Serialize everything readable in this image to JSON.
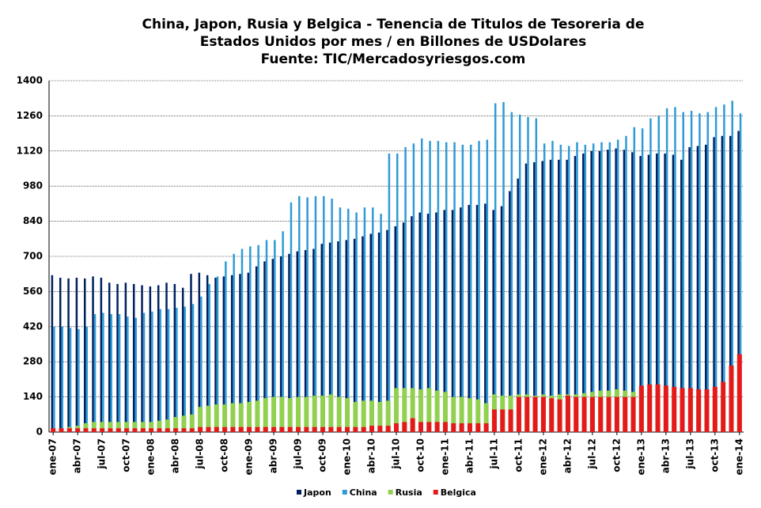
{
  "chart_data": {
    "type": "bar",
    "title": [
      "China, Japon, Rusia y Belgica - Tenencia de Titulos de Tesoreria de",
      "Estados Unidos por mes /  en Billones de USDolares",
      "Fuente: TIC/Mercadosyriesgos.com"
    ],
    "categories": [
      "ene-07",
      null,
      null,
      "abr-07",
      null,
      null,
      "jul-07",
      null,
      null,
      "oct-07",
      null,
      null,
      "ene-08",
      null,
      null,
      "abr-08",
      null,
      null,
      "jul-08",
      null,
      null,
      "oct-08",
      null,
      null,
      "ene-09",
      null,
      null,
      "abr-09",
      null,
      null,
      "jul-09",
      null,
      null,
      "oct-09",
      null,
      null,
      "ene-10",
      null,
      null,
      "abr-10",
      null,
      null,
      "jul-10",
      null,
      null,
      "oct-10",
      null,
      null,
      "ene-11",
      null,
      null,
      "abr-11",
      null,
      null,
      "jul-11",
      null,
      null,
      "oct-11",
      null,
      null,
      "ene-12",
      null,
      null,
      "abr-12",
      null,
      null,
      "jul-12",
      null,
      null,
      "oct-12",
      null,
      null,
      "ene-13",
      null,
      null,
      "abr-13",
      null,
      null,
      "jul-13",
      null,
      null,
      "oct-13",
      null,
      null,
      "ene-14"
    ],
    "series": [
      {
        "name": "Japon",
        "color": "#002060",
        "values": [
          625,
          615,
          612,
          615,
          612,
          620,
          615,
          595,
          590,
          595,
          590,
          585,
          580,
          585,
          595,
          590,
          575,
          630,
          635,
          625,
          615,
          620,
          625,
          630,
          635,
          660,
          680,
          690,
          700,
          710,
          720,
          725,
          730,
          750,
          755,
          760,
          765,
          770,
          780,
          790,
          795,
          805,
          820,
          835,
          860,
          875,
          870,
          875,
          885,
          885,
          895,
          905,
          905,
          910,
          885,
          900,
          960,
          1010,
          1070,
          1075,
          1080,
          1085,
          1085,
          1085,
          1100,
          1110,
          1120,
          1120,
          1125,
          1130,
          1125,
          1115,
          1100,
          1105,
          1110,
          1110,
          1105,
          1085,
          1135,
          1140,
          1145,
          1175,
          1180,
          1180,
          1200
        ]
      },
      {
        "name": "China",
        "color": "#2e9bd6",
        "values": [
          420,
          420,
          415,
          410,
          420,
          470,
          475,
          470,
          470,
          460,
          455,
          475,
          480,
          490,
          490,
          495,
          500,
          510,
          540,
          590,
          620,
          680,
          710,
          730,
          740,
          745,
          765,
          765,
          800,
          915,
          940,
          935,
          940,
          940,
          930,
          895,
          890,
          875,
          895,
          895,
          870,
          1110,
          1110,
          1135,
          1150,
          1170,
          1160,
          1160,
          1155,
          1155,
          1145,
          1145,
          1160,
          1165,
          1310,
          1315,
          1275,
          1265,
          1255,
          1250,
          1150,
          1160,
          1145,
          1140,
          1155,
          1145,
          1150,
          1155,
          1155,
          1165,
          1180,
          1215,
          1210,
          1250,
          1260,
          1290,
          1295,
          1275,
          1280,
          1270,
          1275,
          1295,
          1305,
          1320,
          1270
        ]
      },
      {
        "name": "Rusia",
        "color": "#92d050",
        "values": [
          10,
          15,
          20,
          25,
          35,
          40,
          40,
          40,
          40,
          40,
          40,
          40,
          40,
          45,
          50,
          60,
          65,
          70,
          100,
          105,
          110,
          110,
          115,
          115,
          120,
          125,
          135,
          140,
          140,
          135,
          140,
          140,
          145,
          145,
          150,
          140,
          135,
          120,
          125,
          125,
          120,
          125,
          175,
          175,
          175,
          170,
          175,
          165,
          160,
          140,
          140,
          135,
          130,
          115,
          150,
          145,
          145,
          150,
          150,
          145,
          150,
          145,
          150,
          150,
          150,
          155,
          160,
          165,
          165,
          170,
          165,
          160,
          165,
          160,
          160,
          155,
          150,
          145,
          140,
          140,
          140,
          140,
          145,
          135,
          130
        ]
      },
      {
        "name": "Belgica",
        "color": "#e41a1a",
        "values": [
          15,
          15,
          15,
          15,
          15,
          15,
          15,
          15,
          15,
          15,
          15,
          15,
          15,
          15,
          15,
          15,
          15,
          15,
          20,
          20,
          20,
          20,
          20,
          20,
          20,
          20,
          20,
          20,
          20,
          20,
          20,
          20,
          20,
          20,
          20,
          20,
          20,
          20,
          20,
          25,
          25,
          25,
          35,
          40,
          55,
          40,
          40,
          40,
          40,
          35,
          35,
          35,
          35,
          35,
          90,
          90,
          90,
          140,
          140,
          140,
          140,
          135,
          130,
          145,
          140,
          140,
          140,
          140,
          140,
          140,
          140,
          140,
          185,
          190,
          190,
          185,
          180,
          175,
          175,
          170,
          170,
          180,
          200,
          265,
          310
        ]
      }
    ],
    "ylim": [
      0,
      1400
    ],
    "yticks": [
      0,
      140,
      280,
      420,
      560,
      700,
      840,
      980,
      1120,
      1260,
      1400
    ],
    "grid": true,
    "legend": "bottom"
  }
}
